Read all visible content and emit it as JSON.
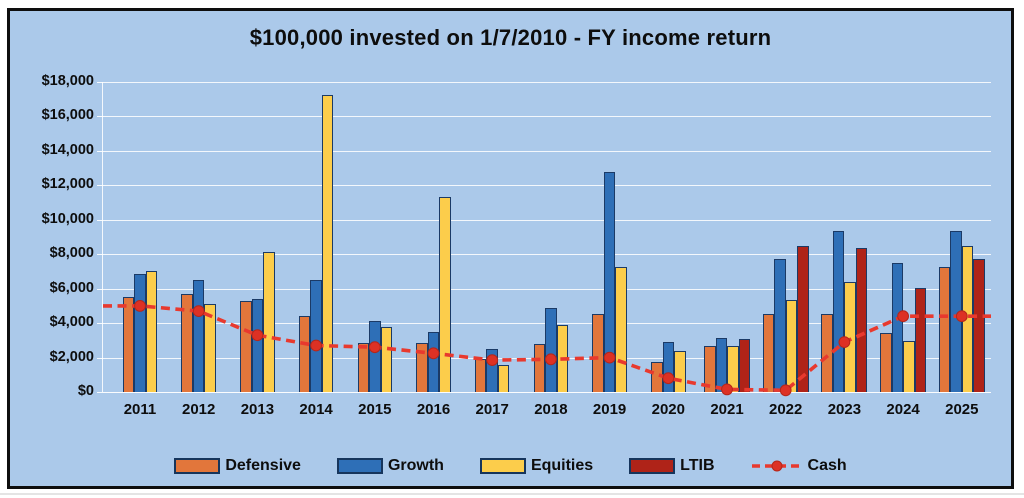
{
  "title": "$100,000 invested on 1/7/2010 - FY income return",
  "colors": {
    "chart_background": "#abc9ea",
    "frame_border": "#0e0e0e",
    "gridline": "#ffffff",
    "bar_outline": "#1b3a66",
    "defensive": "#e2763b",
    "growth": "#2e6fb7",
    "equities": "#fccd4b",
    "ltib": "#af2318",
    "cash_line": "#e8392e",
    "text": "#0d0d0d"
  },
  "chart_data": {
    "type": "bar",
    "title": "$100,000 invested on 1/7/2010 - FY income return",
    "categories": [
      "2011",
      "2012",
      "2013",
      "2014",
      "2015",
      "2016",
      "2017",
      "2018",
      "2019",
      "2020",
      "2021",
      "2022",
      "2023",
      "2024",
      "2025"
    ],
    "series": [
      {
        "name": "Defensive",
        "type": "bar",
        "color": "#e2763b",
        "values": [
          5500,
          5700,
          5300,
          4400,
          2850,
          2850,
          1900,
          2800,
          4550,
          1750,
          2700,
          4550,
          4550,
          3400,
          7250
        ]
      },
      {
        "name": "Growth",
        "type": "bar",
        "color": "#2e6fb7",
        "values": [
          6850,
          6500,
          5400,
          6500,
          4150,
          3500,
          2500,
          4850,
          12750,
          2900,
          3150,
          7700,
          9350,
          7500,
          9350
        ]
      },
      {
        "name": "Equities",
        "type": "bar",
        "color": "#fccd4b",
        "values": [
          7000,
          5100,
          8150,
          17250,
          3800,
          11300,
          1550,
          3900,
          7250,
          2400,
          2650,
          5350,
          6400,
          2950,
          8450
        ]
      },
      {
        "name": "LTIB",
        "type": "bar",
        "color": "#af2318",
        "values": [
          null,
          null,
          null,
          null,
          null,
          null,
          null,
          null,
          null,
          null,
          3050,
          8500,
          8350,
          6050,
          7750
        ]
      },
      {
        "name": "Cash",
        "type": "line",
        "color": "#e8392e",
        "dashed": true,
        "values": [
          5000,
          4700,
          3300,
          2700,
          2600,
          2250,
          1850,
          1900,
          2000,
          800,
          150,
          100,
          2900,
          4400,
          4400
        ]
      }
    ],
    "xlabel": "",
    "ylabel": "",
    "ylim": [
      0,
      18000
    ],
    "ytick_step": 2000,
    "ytick_labels": [
      "$0",
      "$2,000",
      "$4,000",
      "$6,000",
      "$8,000",
      "$10,000",
      "$12,000",
      "$14,000",
      "$16,000",
      "$18,000"
    ],
    "grid": true,
    "legend_position": "bottom"
  }
}
